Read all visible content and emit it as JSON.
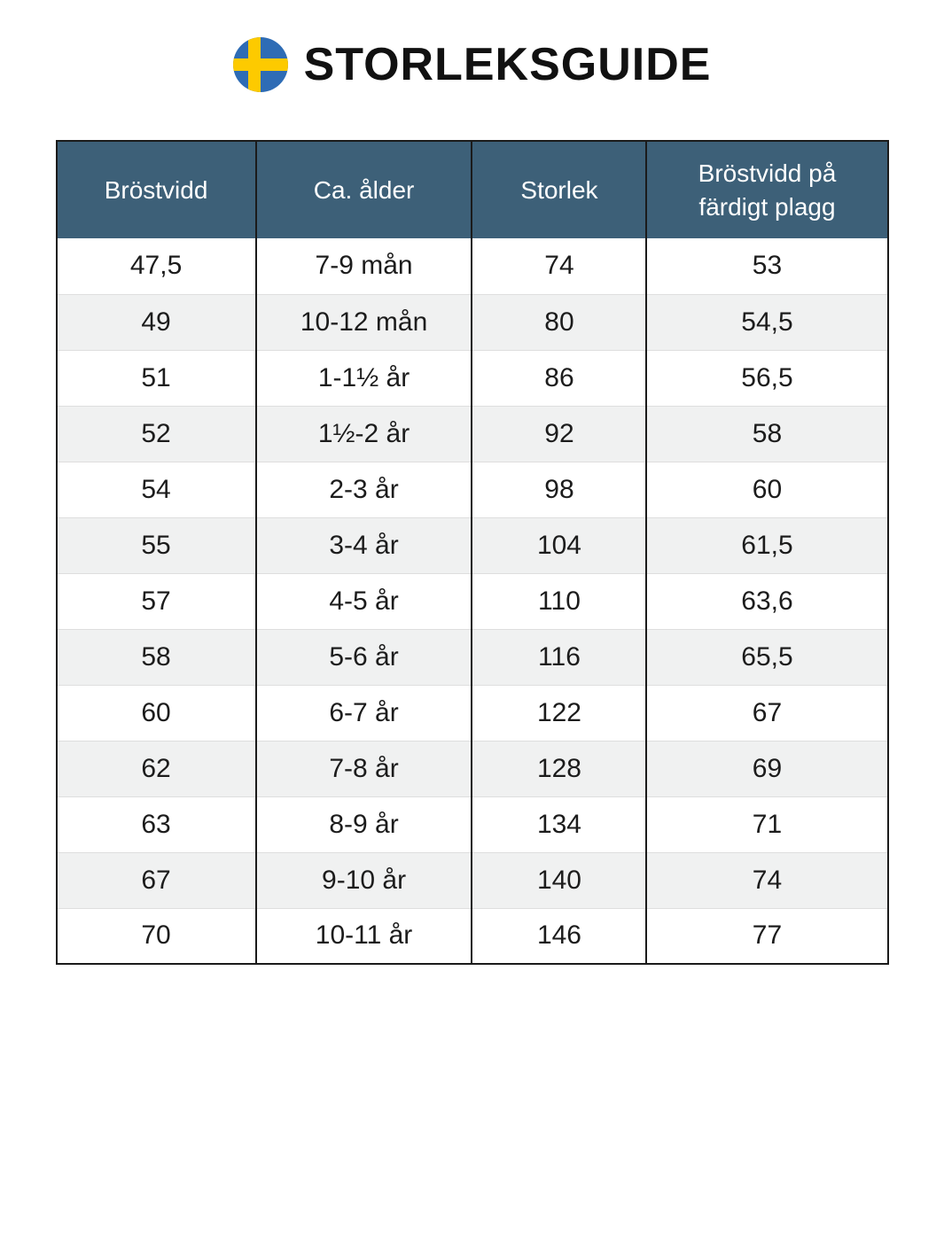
{
  "page": {
    "title": "STORLEKSGUIDE"
  },
  "colors": {
    "header_bg": "#3d6078",
    "header_text": "#ffffff",
    "row_alt_bg": "#f0f1f1",
    "table_border": "#1b1b1b",
    "row_divider": "#dedede",
    "title_text": "#111111",
    "flag_blue": "#2e6cb5",
    "flag_yellow": "#fdca00"
  },
  "table": {
    "columns": [
      "Bröstvidd",
      "Ca. ålder",
      "Storlek",
      "Bröstvidd på färdigt plagg"
    ],
    "rows": [
      [
        "47,5",
        "7-9 mån",
        "74",
        "53"
      ],
      [
        "49",
        "10-12 mån",
        "80",
        "54,5"
      ],
      [
        "51",
        "1-1½ år",
        "86",
        "56,5"
      ],
      [
        "52",
        "1½-2 år",
        "92",
        "58"
      ],
      [
        "54",
        "2-3 år",
        "98",
        "60"
      ],
      [
        "55",
        "3-4 år",
        "104",
        "61,5"
      ],
      [
        "57",
        "4-5 år",
        "110",
        "63,6"
      ],
      [
        "58",
        "5-6 år",
        "116",
        "65,5"
      ],
      [
        "60",
        "6-7 år",
        "122",
        "67"
      ],
      [
        "62",
        "7-8 år",
        "128",
        "69"
      ],
      [
        "63",
        "8-9 år",
        "134",
        "71"
      ],
      [
        "67",
        "9-10 år",
        "140",
        "74"
      ],
      [
        "70",
        "10-11 år",
        "146",
        "77"
      ]
    ]
  }
}
